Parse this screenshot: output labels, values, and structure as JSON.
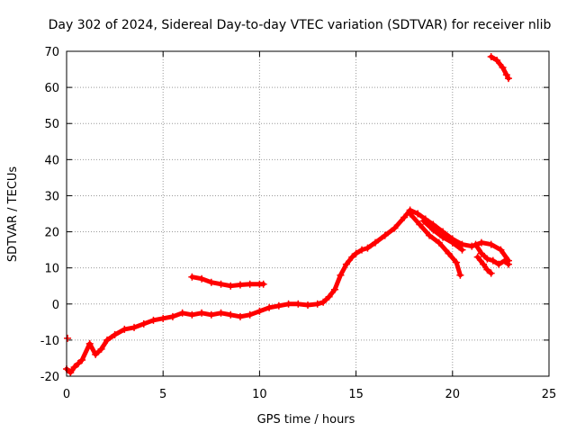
{
  "chart_data": {
    "type": "scatter",
    "title": "Day 302 of 2024, Sidereal Day-to-day VTEC variation (SDTVAR) for receiver nlib",
    "xlabel": "GPS time / hours",
    "ylabel": "SDTVAR / TECUs",
    "xlim": [
      0,
      25
    ],
    "ylim": [
      -20,
      70
    ],
    "x_ticks": [
      0,
      5,
      10,
      15,
      20,
      25
    ],
    "y_ticks": [
      -20,
      -10,
      0,
      10,
      20,
      30,
      40,
      50,
      60,
      70
    ],
    "grid": true,
    "marker": "plus",
    "series_color": "#ff0000",
    "series": [
      {
        "name": "trace-main",
        "points": [
          [
            0.0,
            -18
          ],
          [
            0.2,
            -19
          ],
          [
            0.4,
            -17.5
          ],
          [
            0.6,
            -16.5
          ],
          [
            0.8,
            -15.5
          ],
          [
            1.2,
            -11
          ],
          [
            1.5,
            -14
          ],
          [
            1.8,
            -12.5
          ],
          [
            2.1,
            -10
          ],
          [
            2.5,
            -8.5
          ],
          [
            3.0,
            -7
          ],
          [
            3.5,
            -6.5
          ],
          [
            4.0,
            -5.5
          ],
          [
            4.5,
            -4.5
          ],
          [
            5.0,
            -4
          ],
          [
            5.5,
            -3.5
          ],
          [
            6.0,
            -2.5
          ],
          [
            6.5,
            -3
          ],
          [
            7.0,
            -2.5
          ],
          [
            7.5,
            -3
          ],
          [
            8.0,
            -2.5
          ],
          [
            8.5,
            -3
          ],
          [
            9.0,
            -3.5
          ],
          [
            9.5,
            -3
          ],
          [
            10.0,
            -2
          ],
          [
            10.5,
            -1
          ],
          [
            11.0,
            -0.5
          ],
          [
            11.5,
            0
          ],
          [
            12.0,
            0
          ],
          [
            12.5,
            -0.3
          ],
          [
            13.0,
            0
          ],
          [
            13.3,
            0.5
          ],
          [
            13.6,
            2
          ],
          [
            13.9,
            4
          ],
          [
            14.2,
            8
          ],
          [
            14.5,
            11
          ],
          [
            14.8,
            13
          ],
          [
            15.0,
            14
          ],
          [
            15.3,
            15
          ],
          [
            15.6,
            15.5
          ],
          [
            16.0,
            17
          ],
          [
            16.5,
            19
          ],
          [
            17.0,
            21
          ],
          [
            17.5,
            24
          ],
          [
            17.8,
            26
          ],
          [
            18.2,
            25
          ],
          [
            18.6,
            23.5
          ],
          [
            19.0,
            22
          ],
          [
            19.5,
            20
          ],
          [
            20.0,
            18
          ],
          [
            20.5,
            16.5
          ],
          [
            21.0,
            16
          ],
          [
            21.5,
            17
          ],
          [
            22.0,
            16.5
          ],
          [
            22.5,
            15
          ],
          [
            22.9,
            12
          ]
        ]
      },
      {
        "name": "trace-branch-a",
        "points": [
          [
            17.8,
            25
          ],
          [
            18.3,
            22
          ],
          [
            18.8,
            19
          ],
          [
            19.3,
            17
          ],
          [
            19.8,
            14
          ],
          [
            20.2,
            11.5
          ],
          [
            20.4,
            8
          ]
        ]
      },
      {
        "name": "trace-branch-b",
        "points": [
          [
            18.5,
            23
          ],
          [
            19.0,
            20.5
          ],
          [
            19.5,
            18.5
          ],
          [
            20.0,
            17
          ],
          [
            20.5,
            15
          ]
        ]
      },
      {
        "name": "trace-branch-c",
        "points": [
          [
            21.2,
            16.5
          ],
          [
            21.5,
            14
          ],
          [
            21.8,
            12.5
          ],
          [
            22.1,
            12
          ],
          [
            22.4,
            11
          ],
          [
            22.7,
            12
          ],
          [
            22.9,
            11
          ]
        ]
      },
      {
        "name": "trace-branch-d",
        "points": [
          [
            21.3,
            13
          ],
          [
            21.6,
            11
          ],
          [
            21.8,
            9.5
          ],
          [
            22.0,
            8.5
          ]
        ]
      },
      {
        "name": "trace-segment-mid",
        "points": [
          [
            6.5,
            7.5
          ],
          [
            7.0,
            7
          ],
          [
            7.5,
            6
          ],
          [
            8.0,
            5.5
          ],
          [
            8.5,
            5
          ],
          [
            9.0,
            5.3
          ],
          [
            9.5,
            5.5
          ],
          [
            10.0,
            5.5
          ],
          [
            10.2,
            5.5
          ]
        ]
      },
      {
        "name": "trace-segment-top",
        "points": [
          [
            22.0,
            68.5
          ],
          [
            22.3,
            67.5
          ],
          [
            22.6,
            65.5
          ],
          [
            22.8,
            63.5
          ],
          [
            22.9,
            62.5
          ]
        ]
      },
      {
        "name": "trace-outlier",
        "points": [
          [
            0.05,
            -9.5
          ]
        ]
      }
    ]
  }
}
